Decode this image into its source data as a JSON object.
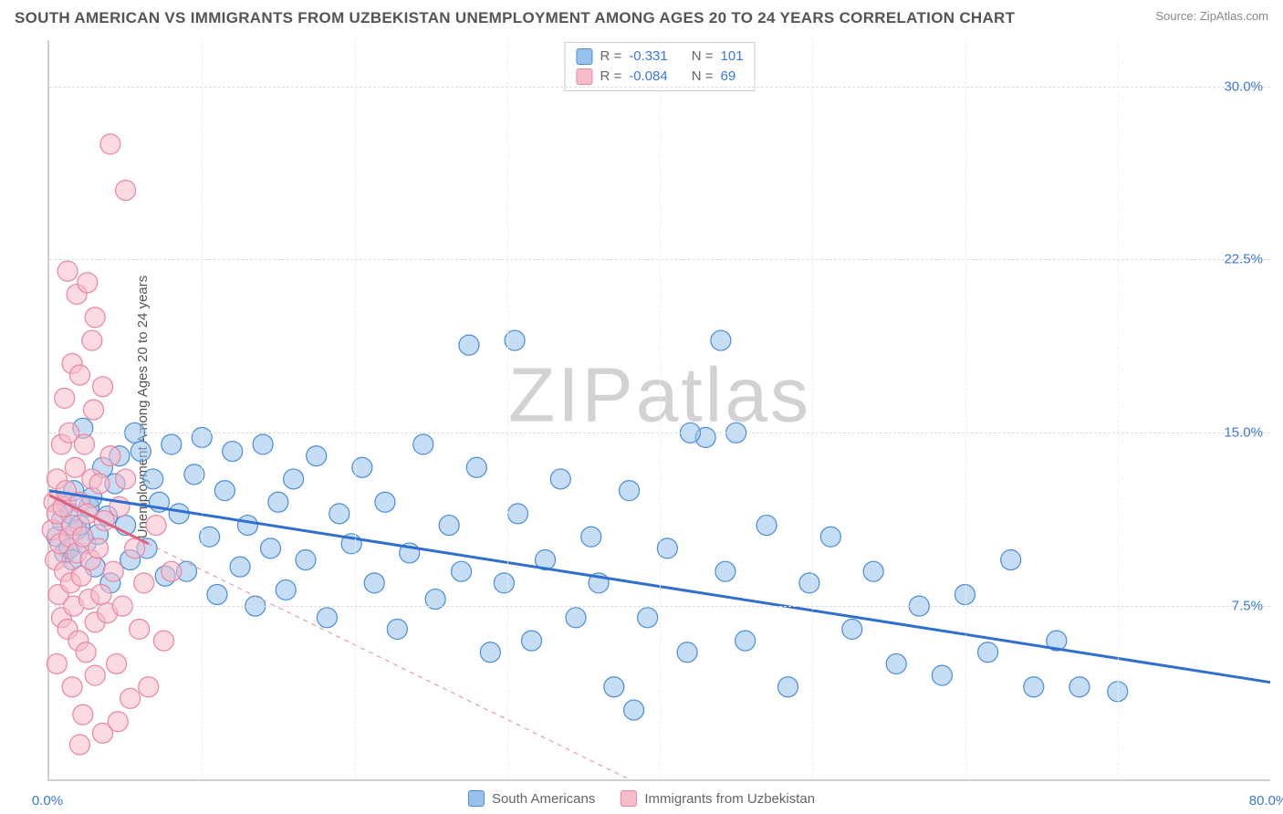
{
  "title": "SOUTH AMERICAN VS IMMIGRANTS FROM UZBEKISTAN UNEMPLOYMENT AMONG AGES 20 TO 24 YEARS CORRELATION CHART",
  "source": "Source: ZipAtlas.com",
  "watermark_a": "ZIP",
  "watermark_b": "atlas",
  "ylabel": "Unemployment Among Ages 20 to 24 years",
  "chart": {
    "type": "scatter",
    "background_color": "#ffffff",
    "grid_color": "#dddddd",
    "axis_color": "#d0d0d0",
    "xlim": [
      0,
      80
    ],
    "ylim": [
      0,
      32
    ],
    "x_ticks": [
      0,
      80
    ],
    "x_tick_labels": [
      "0.0%",
      "80.0%"
    ],
    "x_tick_color": "#3a78d8",
    "y_ticks": [
      7.5,
      15.0,
      22.5,
      30.0
    ],
    "y_tick_labels": [
      "7.5%",
      "15.0%",
      "22.5%",
      "30.0%"
    ],
    "y_tick_color": "#3a78d8",
    "grid_v_positions": [
      10,
      20,
      30,
      40,
      50,
      60,
      70
    ],
    "marker_radius": 11,
    "series": [
      {
        "name": "South Americans",
        "fill": "#96c2ed",
        "fill_opacity": 0.55,
        "stroke": "#4b8cd8",
        "R": "-0.331",
        "N": "101",
        "stat_color": "#3a78d8",
        "trend": {
          "x1": 0,
          "y1": 12.5,
          "x2": 80,
          "y2": 4.2,
          "color": "#2f6fd0",
          "width": 3,
          "dash": ""
        },
        "points": [
          [
            0.5,
            10.5
          ],
          [
            0.8,
            11.2
          ],
          [
            1.0,
            9.8
          ],
          [
            1.1,
            12.0
          ],
          [
            1.3,
            10.0
          ],
          [
            1.4,
            11.5
          ],
          [
            1.5,
            9.5
          ],
          [
            1.6,
            12.5
          ],
          [
            1.8,
            10.8
          ],
          [
            2.0,
            11.0
          ],
          [
            2.2,
            15.2
          ],
          [
            2.4,
            10.2
          ],
          [
            2.6,
            11.8
          ],
          [
            2.8,
            12.2
          ],
          [
            3.0,
            9.2
          ],
          [
            3.2,
            10.6
          ],
          [
            3.5,
            13.5
          ],
          [
            3.8,
            11.4
          ],
          [
            4.0,
            8.5
          ],
          [
            4.3,
            12.8
          ],
          [
            4.6,
            14.0
          ],
          [
            5.0,
            11.0
          ],
          [
            5.3,
            9.5
          ],
          [
            5.6,
            15.0
          ],
          [
            6.0,
            14.2
          ],
          [
            6.4,
            10.0
          ],
          [
            6.8,
            13.0
          ],
          [
            7.2,
            12.0
          ],
          [
            7.6,
            8.8
          ],
          [
            8.0,
            14.5
          ],
          [
            8.5,
            11.5
          ],
          [
            9.0,
            9.0
          ],
          [
            9.5,
            13.2
          ],
          [
            10.0,
            14.8
          ],
          [
            10.5,
            10.5
          ],
          [
            11.0,
            8.0
          ],
          [
            11.5,
            12.5
          ],
          [
            12.0,
            14.2
          ],
          [
            12.5,
            9.2
          ],
          [
            13.0,
            11.0
          ],
          [
            13.5,
            7.5
          ],
          [
            14.0,
            14.5
          ],
          [
            14.5,
            10.0
          ],
          [
            15.0,
            12.0
          ],
          [
            15.5,
            8.2
          ],
          [
            16.0,
            13.0
          ],
          [
            16.8,
            9.5
          ],
          [
            17.5,
            14.0
          ],
          [
            18.2,
            7.0
          ],
          [
            19.0,
            11.5
          ],
          [
            19.8,
            10.2
          ],
          [
            20.5,
            13.5
          ],
          [
            21.3,
            8.5
          ],
          [
            22.0,
            12.0
          ],
          [
            22.8,
            6.5
          ],
          [
            23.6,
            9.8
          ],
          [
            24.5,
            14.5
          ],
          [
            25.3,
            7.8
          ],
          [
            26.2,
            11.0
          ],
          [
            27.0,
            9.0
          ],
          [
            27.5,
            18.8
          ],
          [
            28.0,
            13.5
          ],
          [
            28.9,
            5.5
          ],
          [
            29.8,
            8.5
          ],
          [
            30.7,
            11.5
          ],
          [
            30.5,
            19.0
          ],
          [
            31.6,
            6.0
          ],
          [
            32.5,
            9.5
          ],
          [
            33.5,
            13.0
          ],
          [
            34.5,
            7.0
          ],
          [
            35.5,
            10.5
          ],
          [
            36.0,
            8.5
          ],
          [
            37.0,
            4.0
          ],
          [
            38.0,
            12.5
          ],
          [
            38.3,
            3.0
          ],
          [
            39.2,
            7.0
          ],
          [
            40.5,
            10.0
          ],
          [
            41.8,
            5.5
          ],
          [
            43.0,
            14.8
          ],
          [
            44.3,
            9.0
          ],
          [
            45.0,
            15.0
          ],
          [
            45.6,
            6.0
          ],
          [
            47.0,
            11.0
          ],
          [
            48.4,
            4.0
          ],
          [
            49.8,
            8.5
          ],
          [
            51.2,
            10.5
          ],
          [
            52.6,
            6.5
          ],
          [
            54.0,
            9.0
          ],
          [
            55.5,
            5.0
          ],
          [
            57.0,
            7.5
          ],
          [
            58.5,
            4.5
          ],
          [
            60.0,
            8.0
          ],
          [
            61.5,
            5.5
          ],
          [
            63.0,
            9.5
          ],
          [
            64.5,
            4.0
          ],
          [
            66.0,
            6.0
          ],
          [
            67.5,
            4.0
          ],
          [
            44.0,
            19.0
          ],
          [
            42.0,
            15.0
          ],
          [
            70.0,
            3.8
          ]
        ]
      },
      {
        "name": "Immigrants from Uzbekistan",
        "fill": "#f7bcca",
        "fill_opacity": 0.55,
        "stroke": "#e985a0",
        "R": "-0.084",
        "N": "69",
        "stat_color": "#3a78d8",
        "trend": {
          "x1": 0,
          "y1": 12.3,
          "x2": 38,
          "y2": 0.0,
          "color": "#e985a0",
          "width": 1,
          "dash": "5,5"
        },
        "trend_solid": {
          "x1": 0,
          "y1": 12.3,
          "x2": 6.5,
          "y2": 10.2,
          "color": "#e06080",
          "width": 3
        },
        "points": [
          [
            0.2,
            10.8
          ],
          [
            0.3,
            12.0
          ],
          [
            0.4,
            9.5
          ],
          [
            0.5,
            11.5
          ],
          [
            0.5,
            13.0
          ],
          [
            0.6,
            8.0
          ],
          [
            0.7,
            10.2
          ],
          [
            0.8,
            14.5
          ],
          [
            0.8,
            7.0
          ],
          [
            0.9,
            11.8
          ],
          [
            1.0,
            9.0
          ],
          [
            1.0,
            16.5
          ],
          [
            1.1,
            12.5
          ],
          [
            1.2,
            6.5
          ],
          [
            1.3,
            10.5
          ],
          [
            1.3,
            15.0
          ],
          [
            1.4,
            8.5
          ],
          [
            1.5,
            11.0
          ],
          [
            1.5,
            18.0
          ],
          [
            1.6,
            7.5
          ],
          [
            1.7,
            13.5
          ],
          [
            1.8,
            9.8
          ],
          [
            1.8,
            21.0
          ],
          [
            1.9,
            6.0
          ],
          [
            2.0,
            12.0
          ],
          [
            2.0,
            17.5
          ],
          [
            2.1,
            8.8
          ],
          [
            2.2,
            10.5
          ],
          [
            2.3,
            14.5
          ],
          [
            2.4,
            5.5
          ],
          [
            2.5,
            11.5
          ],
          [
            2.5,
            21.5
          ],
          [
            2.6,
            7.8
          ],
          [
            2.7,
            9.5
          ],
          [
            2.8,
            13.0
          ],
          [
            2.9,
            16.0
          ],
          [
            3.0,
            6.8
          ],
          [
            3.0,
            20.0
          ],
          [
            3.2,
            10.0
          ],
          [
            3.3,
            12.8
          ],
          [
            3.4,
            8.0
          ],
          [
            3.5,
            2.0
          ],
          [
            3.6,
            11.2
          ],
          [
            3.8,
            7.2
          ],
          [
            4.0,
            14.0
          ],
          [
            4.0,
            27.5
          ],
          [
            4.2,
            9.0
          ],
          [
            4.4,
            5.0
          ],
          [
            4.6,
            11.8
          ],
          [
            4.8,
            7.5
          ],
          [
            5.0,
            13.0
          ],
          [
            5.0,
            25.5
          ],
          [
            5.3,
            3.5
          ],
          [
            5.6,
            10.0
          ],
          [
            5.9,
            6.5
          ],
          [
            6.2,
            8.5
          ],
          [
            6.5,
            4.0
          ],
          [
            7.0,
            11.0
          ],
          [
            7.5,
            6.0
          ],
          [
            8.0,
            9.0
          ],
          [
            2.0,
            1.5
          ],
          [
            3.0,
            4.5
          ],
          [
            4.5,
            2.5
          ],
          [
            1.5,
            4.0
          ],
          [
            0.5,
            5.0
          ],
          [
            2.8,
            19.0
          ],
          [
            3.5,
            17.0
          ],
          [
            1.2,
            22.0
          ],
          [
            2.2,
            2.8
          ]
        ]
      }
    ],
    "legend_bottom": [
      {
        "label": "South Americans",
        "fill": "#96c2ed",
        "stroke": "#4b8cd8"
      },
      {
        "label": "Immigrants from Uzbekistan",
        "fill": "#f7bcca",
        "stroke": "#e985a0"
      }
    ]
  },
  "labels": {
    "R": "R = ",
    "N": "N = "
  }
}
